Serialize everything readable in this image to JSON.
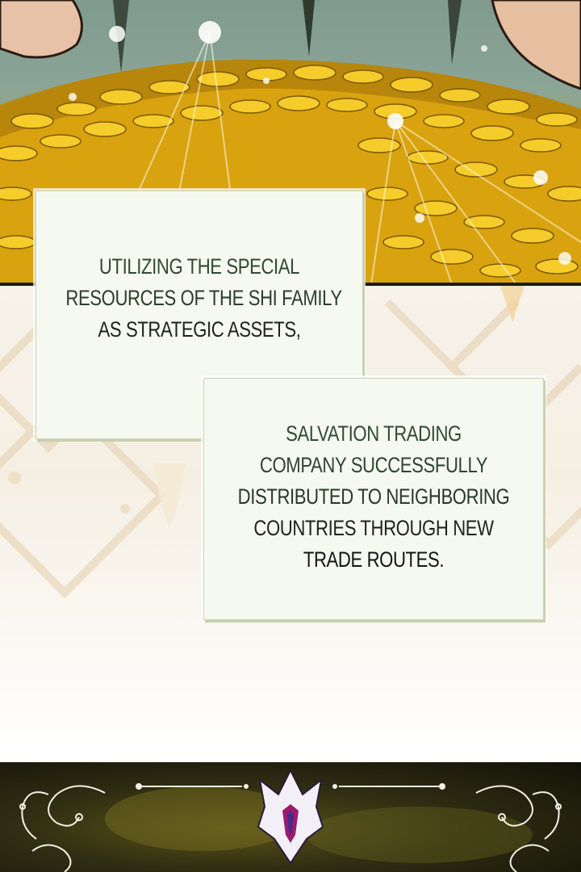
{
  "captions": [
    {
      "lines": [
        "UTILIZING THE SPECIAL",
        "RESOURCES OF THE SHI FAMILY",
        "AS STRATEGIC ASSETS,"
      ]
    },
    {
      "lines": [
        "SALVATION TRADING",
        "COMPANY SUCCESSFULLY",
        "DISTRIBUTED TO NEIGHBORING",
        "COUNTRIES THROUGH NEW",
        "TRADE ROUTES."
      ]
    }
  ],
  "colors": {
    "caption_bg": "#f6f9ef",
    "caption_text": "#1e2a1e",
    "gold": "#f2c318",
    "dark_panel": "#2f2d12"
  },
  "icons": [
    "gold-coin-pile-illustration",
    "crown-emblem-icon",
    "filigree-ornament-icon"
  ]
}
